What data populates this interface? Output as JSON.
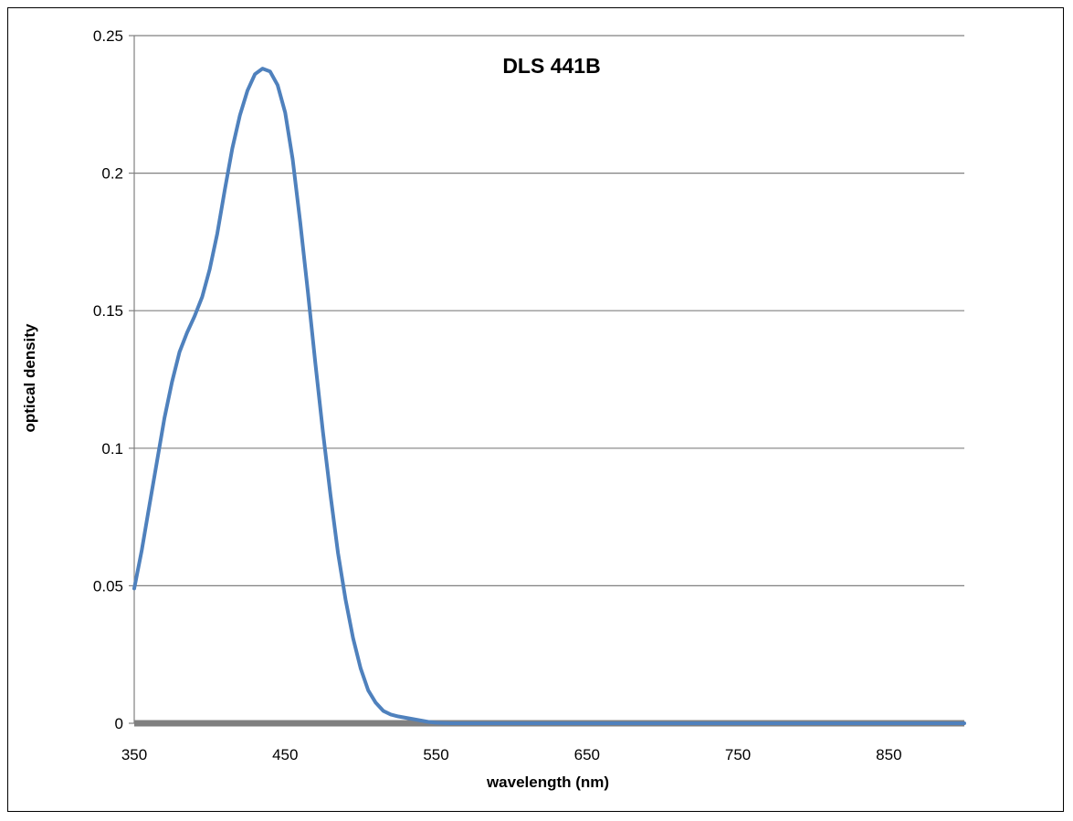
{
  "chart_data": {
    "type": "line",
    "title": "DLS 441B",
    "xlabel": "wavelength (nm)",
    "ylabel": "optical density",
    "xlim": [
      350,
      900
    ],
    "ylim": [
      0,
      0.25
    ],
    "x_ticks": [
      "350",
      "450",
      "550",
      "650",
      "750",
      "850"
    ],
    "x_tick_values": [
      350,
      450,
      550,
      650,
      750,
      850
    ],
    "y_ticks": [
      "0",
      "0.05",
      "0.1",
      "0.15",
      "0.2",
      "0.25"
    ],
    "y_tick_values": [
      0,
      0.05,
      0.1,
      0.15,
      0.2,
      0.25
    ],
    "grid": "horizontal",
    "legend": "none",
    "colors": {
      "series": "#4f81bd",
      "baseline": "#808080",
      "gridline": "#808080"
    },
    "series": [
      {
        "x": [
          350,
          355,
          360,
          365,
          370,
          375,
          380,
          385,
          390,
          395,
          400,
          405,
          410,
          415,
          420,
          425,
          430,
          435,
          440,
          445,
          450,
          455,
          460,
          465,
          470,
          475,
          480,
          485,
          490,
          495,
          500,
          505,
          510,
          515,
          520,
          525,
          530,
          535,
          540,
          545,
          550,
          555,
          560,
          565,
          570,
          575,
          580,
          600,
          650,
          700,
          750,
          800,
          850,
          900
        ],
        "values": [
          0.049,
          0.063,
          0.079,
          0.095,
          0.111,
          0.124,
          0.135,
          0.142,
          0.148,
          0.155,
          0.165,
          0.178,
          0.194,
          0.209,
          0.221,
          0.23,
          0.236,
          0.238,
          0.237,
          0.232,
          0.222,
          0.205,
          0.182,
          0.157,
          0.131,
          0.106,
          0.083,
          0.062,
          0.045,
          0.031,
          0.02,
          0.012,
          0.0075,
          0.0045,
          0.0032,
          0.0025,
          0.002,
          0.0015,
          0.001,
          0.0005,
          0.0002,
          0.0001,
          0,
          0,
          0,
          0,
          0,
          0,
          0,
          0,
          0,
          0,
          0,
          0
        ]
      }
    ]
  }
}
